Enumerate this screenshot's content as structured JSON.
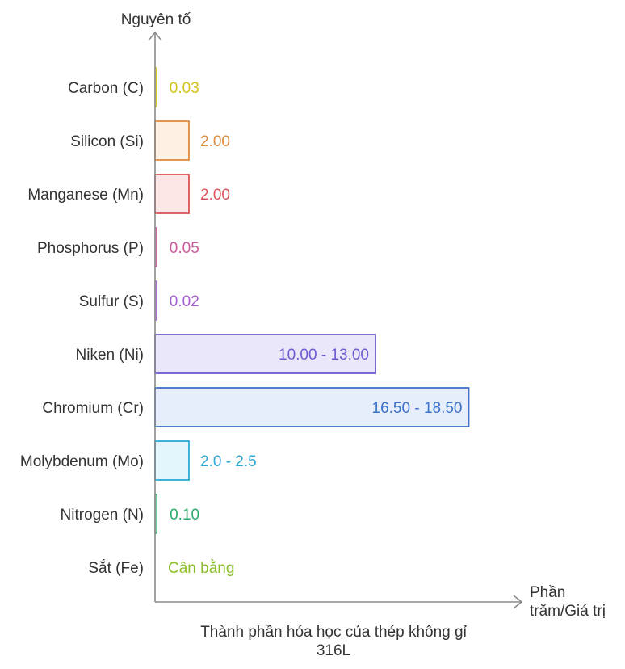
{
  "chart_data": {
    "type": "bar",
    "orientation": "horizontal",
    "ylabel": "Nguyên tố",
    "xlabel_lines": [
      "Phần",
      "trăm/Giá trị"
    ],
    "caption_lines": [
      "Thành phần hóa học của thép không gỉ",
      "316L"
    ],
    "grid": false,
    "xlim": [
      0,
      20
    ],
    "categories": [
      {
        "label": "Carbon (C)",
        "value": 0.03,
        "text": "0.03",
        "color": "#d4c21a",
        "fill": "#fbf7dd",
        "label_inside": false
      },
      {
        "label": "Silicon (Si)",
        "value": 2.0,
        "text": "2.00",
        "color": "#e08a3c",
        "fill": "#fdf1e4",
        "label_inside": false
      },
      {
        "label": "Manganese (Mn)",
        "value": 2.0,
        "text": "2.00",
        "color": "#d9545a",
        "fill": "#fde6e6",
        "label_inside": false
      },
      {
        "label": "Phosphorus (P)",
        "value": 0.05,
        "text": "0.05",
        "color": "#cc5a9a",
        "fill": "#fbe6f1",
        "label_inside": false
      },
      {
        "label": "Sulfur (S)",
        "value": 0.02,
        "text": "0.02",
        "color": "#a55fd0",
        "fill": "#f3e8fb",
        "label_inside": false
      },
      {
        "label": "Niken (Ni)",
        "value": 13.0,
        "text": "10.00 - 13.00",
        "color": "#6c5bd0",
        "fill": "#eae7fb",
        "label_inside": true
      },
      {
        "label": "Chromium (Cr)",
        "value": 18.5,
        "text": "16.50 - 18.50",
        "color": "#3d72c9",
        "fill": "#e6eefb",
        "label_inside": true
      },
      {
        "label": "Molybdenum (Mo)",
        "value": 2.0,
        "text": "2.0 - 2.5",
        "color": "#2aa9d2",
        "fill": "#e3f6fb",
        "label_inside": false
      },
      {
        "label": "Nitrogen (N)",
        "value": 0.1,
        "text": "0.10",
        "color": "#2eaa6e",
        "fill": "#e2f6ec",
        "label_inside": false
      },
      {
        "label": "Sắt (Fe)",
        "value": 0,
        "text": "Cân bằng",
        "color": "#8cbd2a",
        "fill": "#f1f8e0",
        "label_inside": false
      }
    ]
  }
}
